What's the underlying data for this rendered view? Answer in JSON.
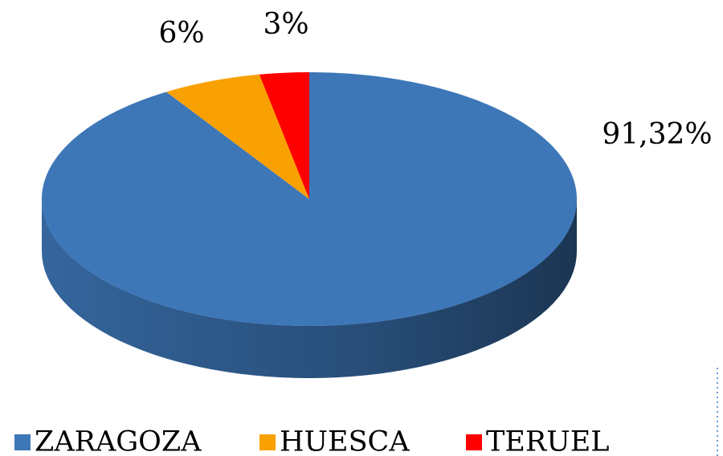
{
  "chart_data": {
    "type": "pie",
    "categories": [
      "ZARAGOZA",
      "HUESCA",
      "TERUEL"
    ],
    "values": [
      91.32,
      6,
      3
    ],
    "value_labels": [
      "91,32%",
      "6%",
      "3%"
    ],
    "colors": [
      "#3d77b8",
      "#f9a102",
      "#ff0000"
    ],
    "legend": "bottom"
  }
}
